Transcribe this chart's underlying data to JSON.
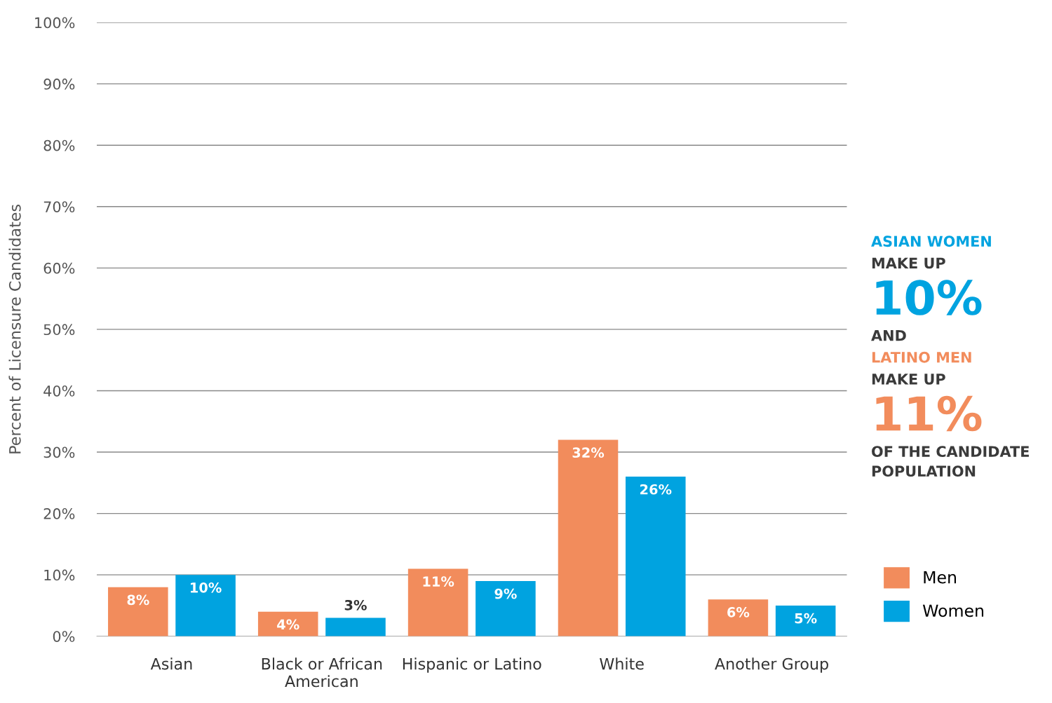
{
  "chart_data": {
    "type": "bar",
    "ylabel": "Percent of Licensure Candidates",
    "categories": [
      "Asian",
      "Black or African\nAmerican",
      "Hispanic or Latino",
      "White",
      "Another Group"
    ],
    "series": [
      {
        "name": "Men",
        "color": "#f28c5c",
        "values": [
          8,
          4,
          11,
          32,
          6
        ],
        "value_labels": [
          "8%",
          "4%",
          "11%",
          "32%",
          "6%"
        ]
      },
      {
        "name": "Women",
        "color": "#00a3e0",
        "values": [
          10,
          3,
          9,
          26,
          5
        ],
        "value_labels": [
          "10%",
          "3%",
          "9%",
          "26%",
          "5%"
        ]
      }
    ],
    "ylim": [
      0,
      100
    ],
    "yticks": [
      {
        "value": 0,
        "label": "0%"
      },
      {
        "value": 10,
        "label": "10%"
      },
      {
        "value": 20,
        "label": "20%"
      },
      {
        "value": 30,
        "label": "30%"
      },
      {
        "value": 40,
        "label": "40%"
      },
      {
        "value": 50,
        "label": "50%"
      },
      {
        "value": 60,
        "label": "60%"
      },
      {
        "value": 70,
        "label": "70%"
      },
      {
        "value": 80,
        "label": "80%"
      },
      {
        "value": 90,
        "label": "90%"
      },
      {
        "value": 100,
        "label": "100%"
      }
    ],
    "grid": "y",
    "legend": "right",
    "annotations": [
      "ASIAN WOMEN",
      "MAKE UP",
      "10%",
      "AND",
      "LATINO MEN",
      "MAKE UP",
      "11%",
      "OF THE CANDIDATE\nPOPULATION"
    ]
  }
}
